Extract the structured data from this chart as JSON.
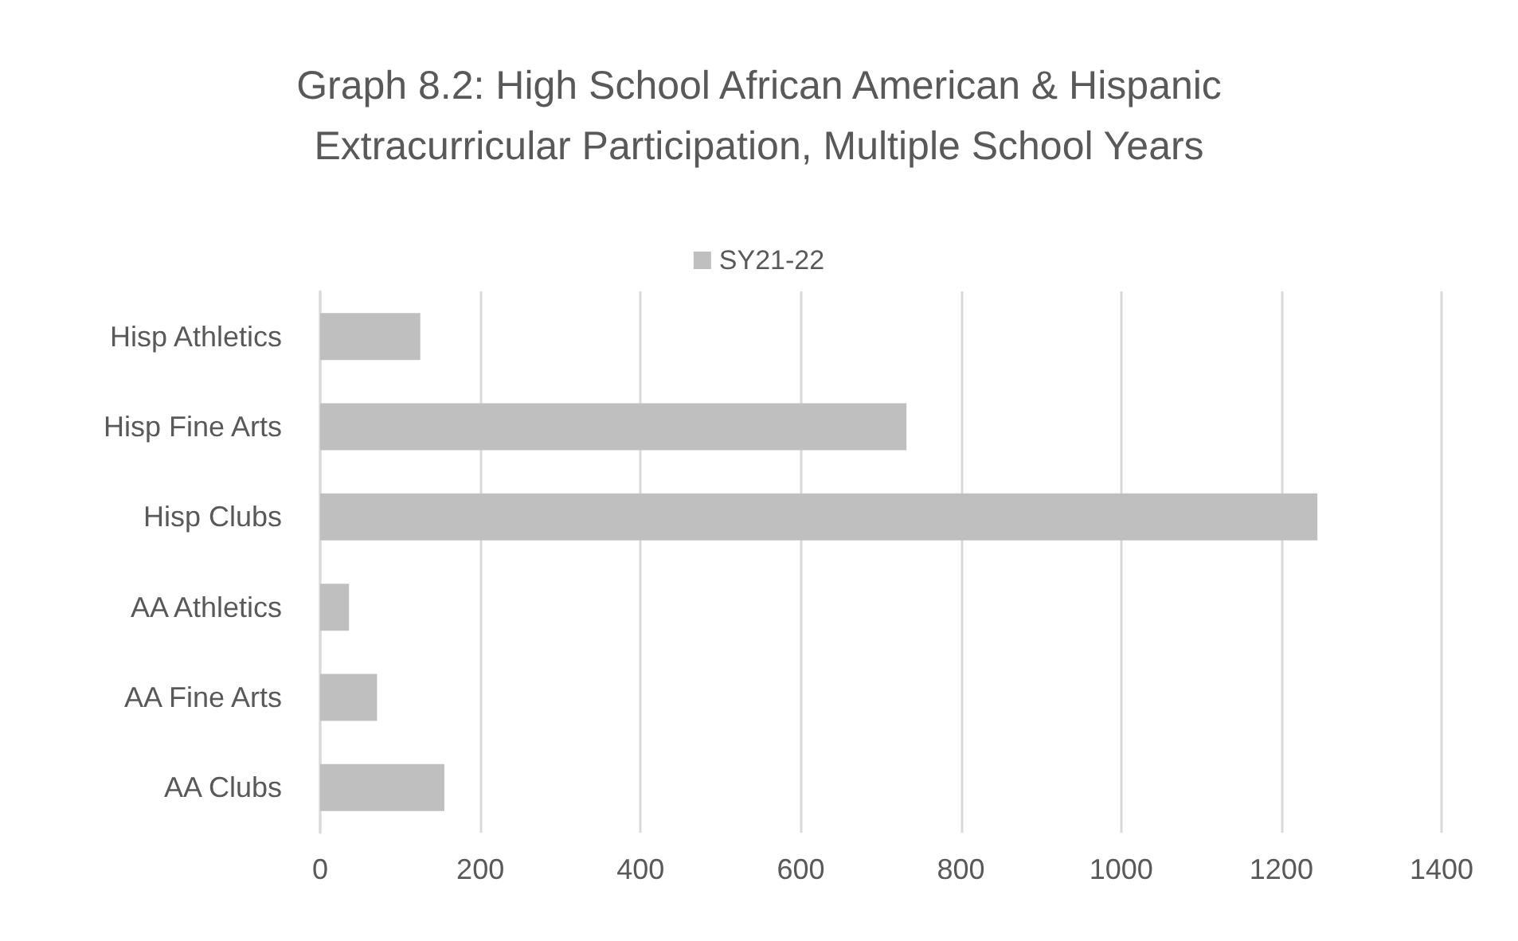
{
  "chart_data": {
    "type": "bar",
    "orientation": "horizontal",
    "title": "Graph 8.2: High School African American & Hispanic\nExtracurricular Participation, Multiple School Years",
    "categories": [
      "Hisp Athletics",
      "Hisp Fine Arts",
      "Hisp Clubs",
      "AA Athletics",
      "AA Fine Arts",
      "AA Clubs"
    ],
    "series": [
      {
        "name": "SY21-22",
        "color": "#bfbfbf",
        "values": [
          125,
          732,
          1245,
          36,
          71,
          155
        ]
      }
    ],
    "xlim": [
      0,
      1400
    ],
    "xticks": [
      0,
      200,
      400,
      600,
      800,
      1000,
      1200,
      1400
    ],
    "grid": "x",
    "legend": "top"
  }
}
